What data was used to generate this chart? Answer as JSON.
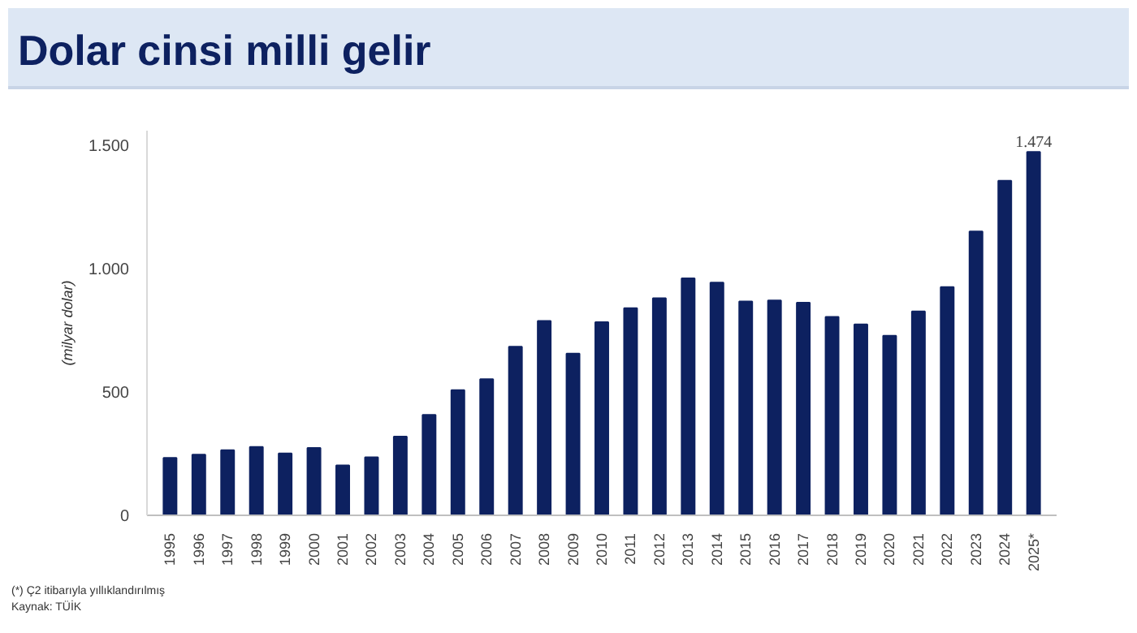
{
  "chart_data": {
    "type": "bar",
    "title": "Dolar cinsi milli gelir",
    "ylabel": "(milyar dolar)",
    "categories": [
      "1995",
      "1996",
      "1997",
      "1998",
      "1999",
      "2000",
      "2001",
      "2002",
      "2003",
      "2004",
      "2005",
      "2006",
      "2007",
      "2008",
      "2009",
      "2010",
      "2011",
      "2012",
      "2013",
      "2014",
      "2015",
      "2016",
      "2017",
      "2018",
      "2019",
      "2020",
      "2021",
      "2022",
      "2023",
      "2024",
      "2025*"
    ],
    "values": [
      233,
      246,
      264,
      277,
      251,
      273,
      202,
      235,
      319,
      407,
      508,
      552,
      684,
      788,
      656,
      783,
      840,
      880,
      961,
      944,
      867,
      871,
      862,
      805,
      774,
      728,
      827,
      926,
      1151,
      1357,
      1474
    ],
    "value_labels": [
      null,
      null,
      null,
      null,
      null,
      null,
      null,
      null,
      null,
      null,
      null,
      null,
      null,
      null,
      null,
      null,
      null,
      null,
      null,
      null,
      null,
      null,
      null,
      null,
      null,
      null,
      null,
      null,
      null,
      null,
      "1.474"
    ],
    "color": "#0d2160",
    "ylim": [
      0,
      1560
    ],
    "yticks": [
      0,
      {
        "value": 500,
        "label": "500"
      },
      {
        "value": 1000,
        "label": "1.000"
      },
      {
        "value": 1500,
        "label": "1.500"
      }
    ],
    "grid": false,
    "annotations": [
      "(*) Ç2 itibarıyla yıllıklandırılmış",
      "Kaynak: TÜİK"
    ]
  }
}
